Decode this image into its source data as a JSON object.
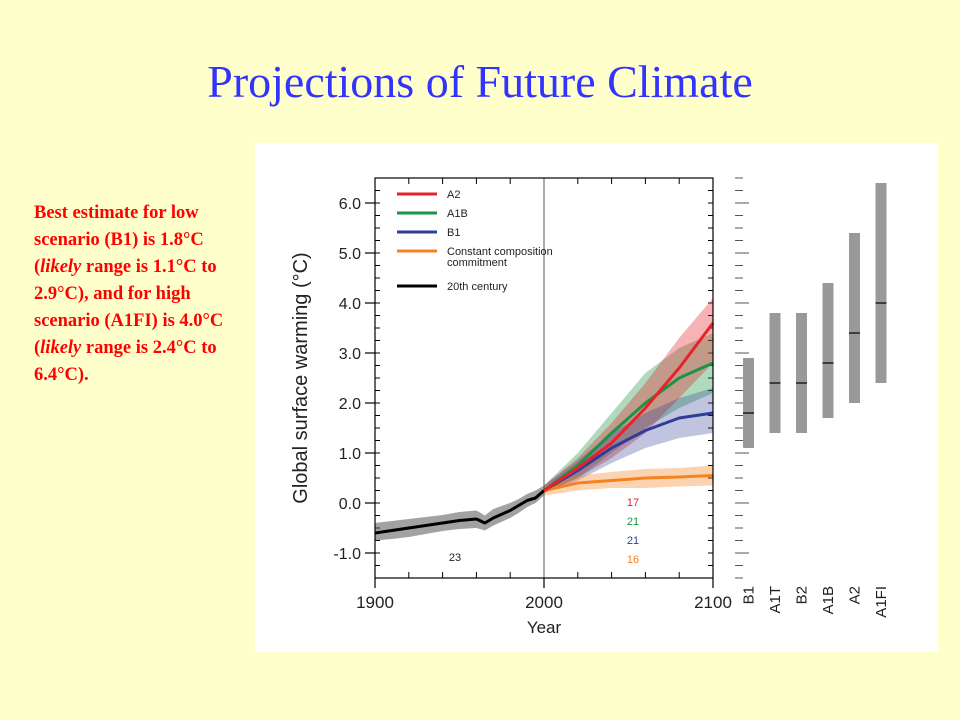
{
  "slide": {
    "title": "Projections of Future Climate",
    "note_parts": [
      "Best estimate for low scenario (B1) is 1.8°C (",
      "likely",
      " range is 1.1°C to 2.9°C), and for high scenario (A1FI) is 4.0°C (",
      "likely",
      " range is 2.4°C to 6.4°C)."
    ]
  },
  "colors": {
    "title": "#3333ff",
    "note": "#ff0000",
    "background": "#ffffcc",
    "A2": "#e8222a",
    "A1B": "#1a9446",
    "B1": "#2f3d96",
    "commitment": "#f58220",
    "century20": "#000000",
    "range_bar": "#999999"
  },
  "chart_data": [
    {
      "type": "line",
      "xlabel": "Year",
      "ylabel": "Global surface warming (°C)",
      "xlim": [
        1900,
        2100
      ],
      "ylim": [
        -1.5,
        6.5
      ],
      "x_ticks": [
        "1900",
        "2000",
        "2100"
      ],
      "y_ticks": [
        "-1.0",
        "0.0",
        "1.0",
        "2.0",
        "3.0",
        "4.0",
        "5.0",
        "6.0"
      ],
      "x_tick_values": [
        1900,
        2000,
        2100
      ],
      "y_tick_values": [
        -1,
        0,
        1,
        2,
        3,
        4,
        5,
        6
      ],
      "vertical_line_x": 2000,
      "legend_position": "top-left",
      "series": [
        {
          "key": "century20",
          "name": "20th century",
          "model_count": "23",
          "x": [
            1900,
            1910,
            1920,
            1930,
            1940,
            1950,
            1960,
            1965,
            1970,
            1980,
            1985,
            1990,
            1995,
            2000
          ],
          "values": [
            -0.6,
            -0.55,
            -0.5,
            -0.45,
            -0.4,
            -0.35,
            -0.32,
            -0.4,
            -0.3,
            -0.15,
            -0.05,
            0.05,
            0.1,
            0.25
          ],
          "lower": [
            -0.75,
            -0.72,
            -0.68,
            -0.62,
            -0.56,
            -0.52,
            -0.5,
            -0.55,
            -0.45,
            -0.3,
            -0.2,
            -0.08,
            0.0,
            0.15
          ],
          "upper": [
            -0.4,
            -0.36,
            -0.32,
            -0.28,
            -0.24,
            -0.18,
            -0.15,
            -0.25,
            -0.12,
            0.0,
            0.08,
            0.18,
            0.25,
            0.35
          ]
        },
        {
          "key": "A2",
          "name": "A2",
          "model_count": "17",
          "x": [
            2000,
            2020,
            2040,
            2060,
            2080,
            2100
          ],
          "values": [
            0.25,
            0.7,
            1.2,
            1.9,
            2.7,
            3.6
          ],
          "lower": [
            0.2,
            0.5,
            0.9,
            1.4,
            2.1,
            2.8
          ],
          "upper": [
            0.35,
            0.9,
            1.6,
            2.4,
            3.3,
            4.1
          ]
        },
        {
          "key": "A1B",
          "name": "A1B",
          "model_count": "21",
          "x": [
            2000,
            2020,
            2040,
            2060,
            2080,
            2100
          ],
          "values": [
            0.25,
            0.75,
            1.4,
            2.0,
            2.5,
            2.8
          ],
          "lower": [
            0.2,
            0.5,
            1.0,
            1.5,
            1.9,
            2.2
          ],
          "upper": [
            0.35,
            1.0,
            1.8,
            2.6,
            3.1,
            3.4
          ]
        },
        {
          "key": "B1",
          "name": "B1",
          "model_count": "21",
          "x": [
            2000,
            2020,
            2040,
            2060,
            2080,
            2100
          ],
          "values": [
            0.25,
            0.65,
            1.1,
            1.45,
            1.7,
            1.8
          ],
          "lower": [
            0.2,
            0.45,
            0.8,
            1.1,
            1.3,
            1.4
          ],
          "upper": [
            0.35,
            0.85,
            1.4,
            1.8,
            2.1,
            2.3
          ]
        },
        {
          "key": "commitment",
          "name": "Constant composition commitment",
          "model_count": "16",
          "x": [
            2000,
            2020,
            2040,
            2060,
            2080,
            2100
          ],
          "values": [
            0.25,
            0.4,
            0.45,
            0.5,
            0.52,
            0.55
          ],
          "lower": [
            0.15,
            0.25,
            0.3,
            0.3,
            0.33,
            0.35
          ],
          "upper": [
            0.35,
            0.55,
            0.62,
            0.68,
            0.7,
            0.75
          ]
        }
      ]
    },
    {
      "type": "bar",
      "title": "",
      "categories": [
        "B1",
        "A1T",
        "B2",
        "A1B",
        "A2",
        "A1FI"
      ],
      "best": [
        1.8,
        2.4,
        2.4,
        2.8,
        3.4,
        4.0
      ],
      "low": [
        1.1,
        1.4,
        1.4,
        1.7,
        2.0,
        2.4
      ],
      "high": [
        2.9,
        3.8,
        3.8,
        4.4,
        5.4,
        6.4
      ]
    }
  ]
}
